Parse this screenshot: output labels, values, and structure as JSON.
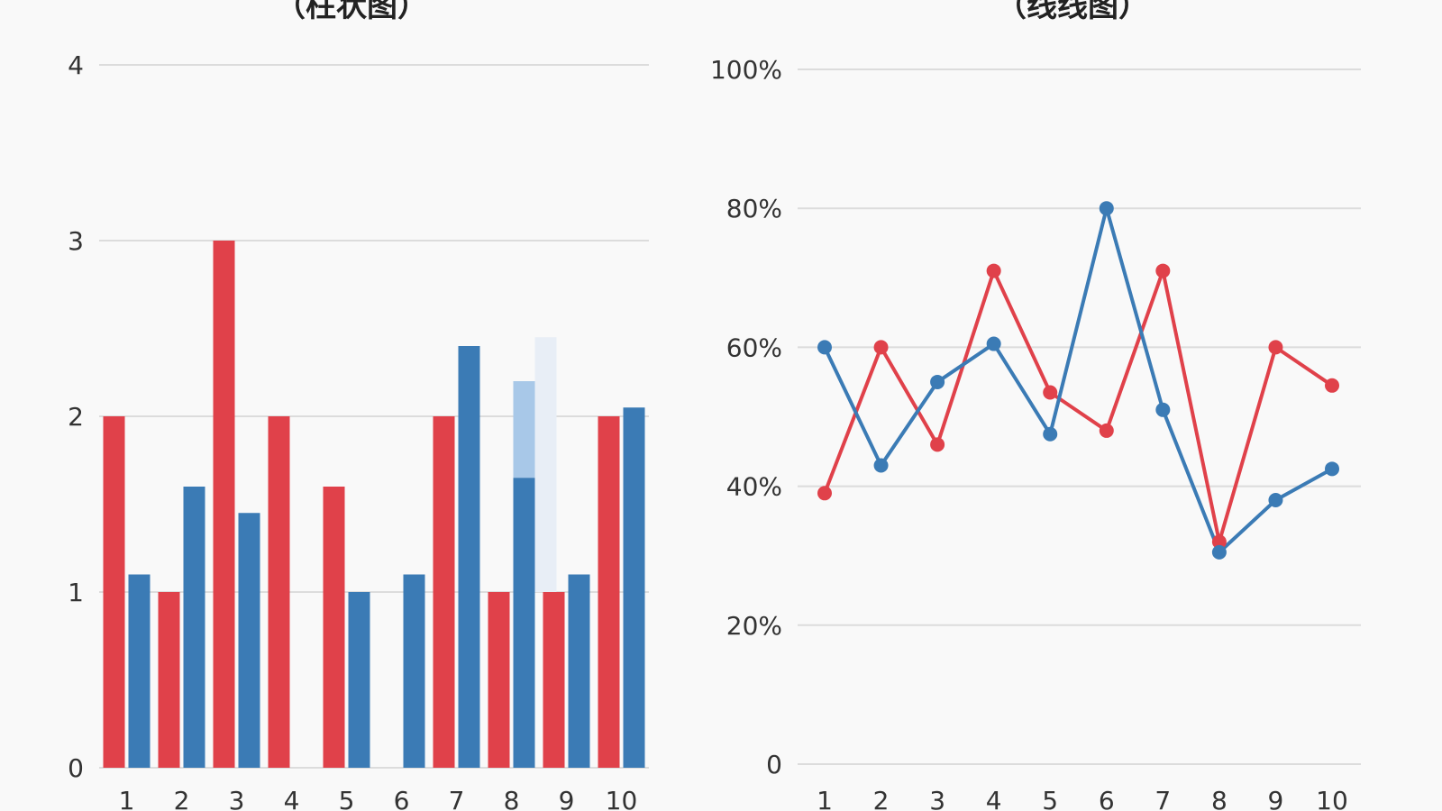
{
  "colors": {
    "red": "#e0414a",
    "blue": "#3b7bb5",
    "light_blue": "#a8c8e8",
    "faint_blue": "#e8eef6"
  },
  "chart_data": [
    {
      "type": "bar",
      "title": "（柱状图）",
      "categories": [
        "1",
        "2",
        "3",
        "4",
        "5",
        "6",
        "7",
        "8",
        "9",
        "10"
      ],
      "ylim": [
        0,
        4
      ],
      "yticks": [
        "0",
        "1",
        "2",
        "3",
        "4"
      ],
      "series": [
        {
          "values": [
            2,
            1,
            3,
            2,
            1.6,
            null,
            2,
            1,
            1,
            2
          ]
        },
        {
          "values": [
            1.1,
            1.6,
            1.45,
            null,
            1,
            1.1,
            2.4,
            1.65,
            1.1,
            2.05
          ]
        }
      ],
      "overlay_bars": [
        {
          "category": "8",
          "value_from": 1.65,
          "value_to": 2.2,
          "color": "light_blue"
        },
        {
          "category": "8",
          "value_from": 1,
          "value_to": 2.45,
          "color": "faint_blue"
        }
      ],
      "grid": true
    },
    {
      "type": "line",
      "title": "（线线图）",
      "x": [
        "1",
        "2",
        "3",
        "4",
        "5",
        "6",
        "7",
        "8",
        "9",
        "10"
      ],
      "ylim": [
        0,
        100
      ],
      "yticks": [
        "0",
        "20%",
        "40%",
        "60%",
        "80%",
        "100%"
      ],
      "series": [
        {
          "values": [
            39,
            60,
            46,
            71,
            53.5,
            48,
            71,
            32,
            60,
            54.5
          ]
        },
        {
          "values": [
            60,
            43,
            55,
            60.5,
            47.5,
            80,
            51,
            30.5,
            38,
            42.5
          ]
        }
      ],
      "grid": true
    }
  ]
}
